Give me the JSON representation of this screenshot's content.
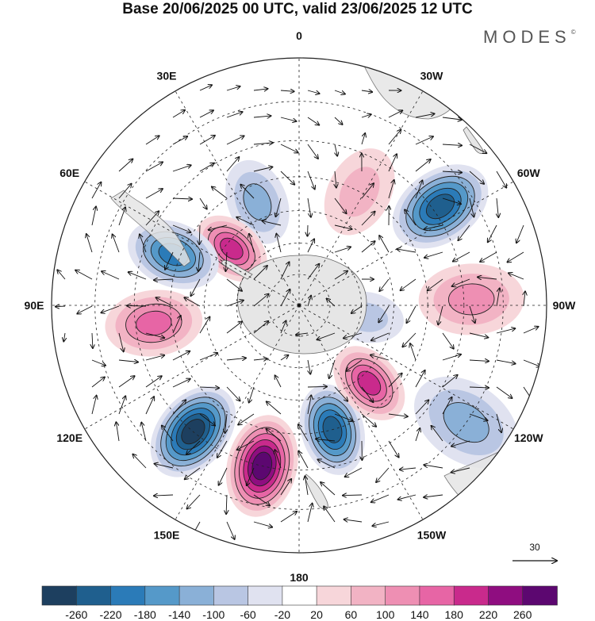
{
  "title": "Base 20/06/2025 00 UTC, valid 23/06/2025 12 UTC",
  "brand": "MODES",
  "brand_mark": "©",
  "map": {
    "projection": "south-polar-stereographic",
    "longitude_labels": [
      {
        "text": "0",
        "lon": 0
      },
      {
        "text": "30E",
        "lon": 30
      },
      {
        "text": "60E",
        "lon": 60
      },
      {
        "text": "90E",
        "lon": 90
      },
      {
        "text": "120E",
        "lon": 120
      },
      {
        "text": "150E",
        "lon": 150
      },
      {
        "text": "180",
        "lon": 180
      },
      {
        "text": "150W",
        "lon": -150
      },
      {
        "text": "120W",
        "lon": -120
      },
      {
        "text": "90W",
        "lon": -90
      },
      {
        "text": "60W",
        "lon": -60
      },
      {
        "text": "30W",
        "lon": -30
      }
    ],
    "latitude_circles": [
      -80,
      -70,
      -60,
      -50,
      -40,
      -30,
      -20
    ],
    "anomalies": [
      {
        "sign": "negative",
        "lon": -55,
        "lat": -38,
        "peak": -220
      },
      {
        "sign": "positive",
        "lon": -28,
        "lat": -50,
        "peak": 60
      },
      {
        "sign": "negative",
        "lon": 22,
        "lat": -55,
        "peak": -100
      },
      {
        "sign": "positive",
        "lon": 50,
        "lat": -62,
        "peak": 180
      },
      {
        "sign": "negative",
        "lon": 68,
        "lat": -48,
        "peak": -180
      },
      {
        "sign": "positive",
        "lon": 97,
        "lat": -45,
        "peak": 140
      },
      {
        "sign": "negative",
        "lon": 140,
        "lat": -40,
        "peak": -260
      },
      {
        "sign": "positive",
        "lon": 167,
        "lat": -40,
        "peak": 260
      },
      {
        "sign": "negative",
        "lon": -165,
        "lat": -50,
        "peak": -220
      },
      {
        "sign": "positive",
        "lon": -138,
        "lat": -57,
        "peak": 180
      },
      {
        "sign": "negative",
        "lon": -125,
        "lat": -30,
        "peak": -100
      },
      {
        "sign": "positive",
        "lon": -88,
        "lat": -38,
        "peak": 100
      },
      {
        "sign": "negative",
        "lon": -100,
        "lat": -68,
        "peak": -60
      }
    ]
  },
  "vector_reference": {
    "label": "30"
  },
  "colorbar": {
    "colors": [
      "#1d3f5f",
      "#1f5f8e",
      "#2b7bb8",
      "#5599c9",
      "#8ab0d7",
      "#b9c6e3",
      "#e0e2f0",
      "#ffffff",
      "#f7d6da",
      "#f2b3c4",
      "#ee8fb3",
      "#e765a5",
      "#c92a8c",
      "#8f0d80",
      "#5c0770"
    ],
    "labels": [
      "-260",
      "-220",
      "-180",
      "-140",
      "-100",
      "-60",
      "-20",
      "20",
      "60",
      "100",
      "140",
      "180",
      "220",
      "260"
    ]
  }
}
